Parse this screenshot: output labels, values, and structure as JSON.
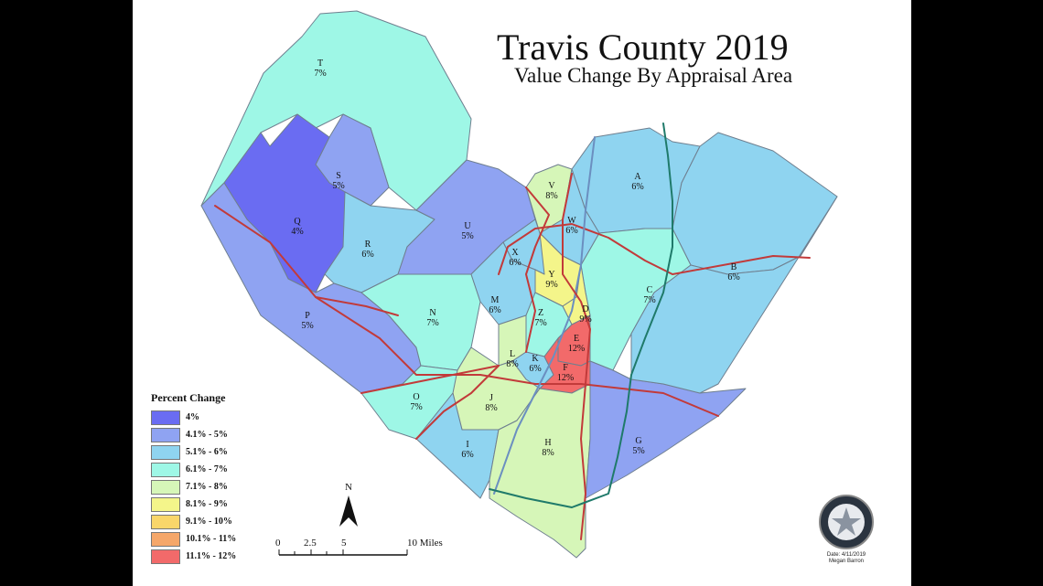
{
  "title": "Travis County 2019",
  "subtitle": "Value Change By Appraisal Area",
  "legend": {
    "title": "Percent Change",
    "items": [
      {
        "label": "4%",
        "color": "#6a6cf2"
      },
      {
        "label": "4.1% - 5%",
        "color": "#8fa3f2"
      },
      {
        "label": "5.1% - 6%",
        "color": "#8fd4f0"
      },
      {
        "label": "6.1% - 7%",
        "color": "#9ef7e6"
      },
      {
        "label": "7.1% - 8%",
        "color": "#d6f6b8"
      },
      {
        "label": "8.1% - 9%",
        "color": "#f4f58a"
      },
      {
        "label": "9.1% - 10%",
        "color": "#f9d66a"
      },
      {
        "label": "10.1% - 11%",
        "color": "#f5a76a"
      },
      {
        "label": "11.1% - 12%",
        "color": "#f26a6a"
      }
    ]
  },
  "areas": [
    {
      "code": "T",
      "value": "7%"
    },
    {
      "code": "S",
      "value": "5%"
    },
    {
      "code": "Q",
      "value": "4%"
    },
    {
      "code": "R",
      "value": "6%"
    },
    {
      "code": "U",
      "value": "5%"
    },
    {
      "code": "V",
      "value": "8%"
    },
    {
      "code": "A",
      "value": "6%"
    },
    {
      "code": "W",
      "value": "6%"
    },
    {
      "code": "X",
      "value": "6%"
    },
    {
      "code": "Y",
      "value": "9%"
    },
    {
      "code": "B",
      "value": "6%"
    },
    {
      "code": "C",
      "value": "7%"
    },
    {
      "code": "D",
      "value": "9%"
    },
    {
      "code": "M",
      "value": "6%"
    },
    {
      "code": "Z",
      "value": "7%"
    },
    {
      "code": "N",
      "value": "7%"
    },
    {
      "code": "P",
      "value": "5%"
    },
    {
      "code": "E",
      "value": "12%"
    },
    {
      "code": "L",
      "value": "8%"
    },
    {
      "code": "K",
      "value": "6%"
    },
    {
      "code": "F",
      "value": "12%"
    },
    {
      "code": "O",
      "value": "7%"
    },
    {
      "code": "J",
      "value": "8%"
    },
    {
      "code": "G",
      "value": "5%"
    },
    {
      "code": "H",
      "value": "8%"
    },
    {
      "code": "I",
      "value": "6%"
    }
  ],
  "scale": {
    "ticks": [
      "0",
      "2.5",
      "5",
      "10 Miles"
    ]
  },
  "north": "N",
  "credit": {
    "date": "Date: 4/11/2019",
    "author": "Megan Barron"
  }
}
